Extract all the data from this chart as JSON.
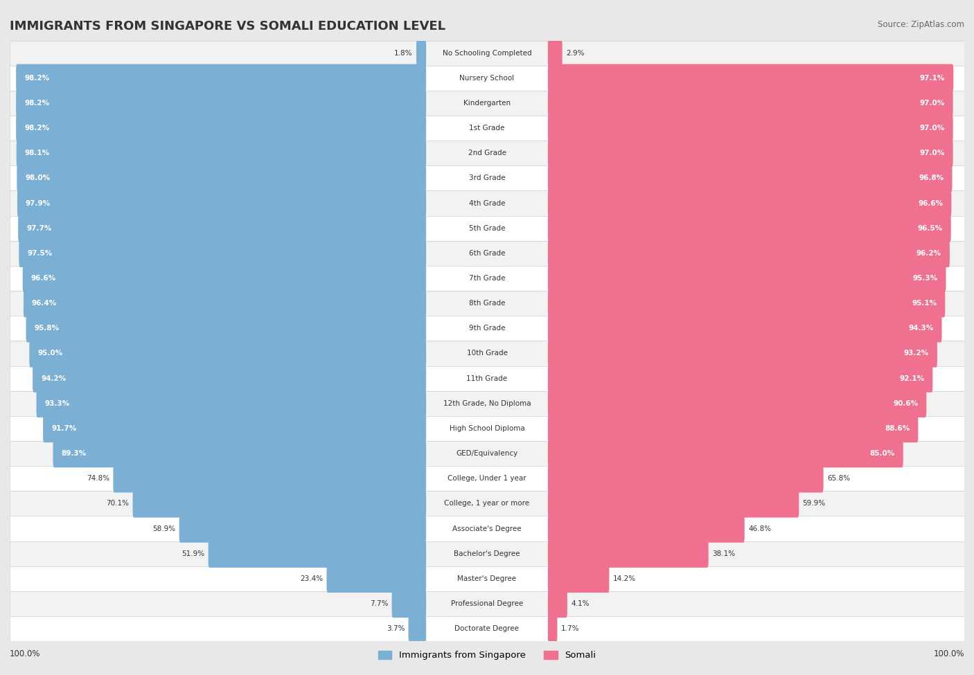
{
  "title": "IMMIGRANTS FROM SINGAPORE VS SOMALI EDUCATION LEVEL",
  "source": "Source: ZipAtlas.com",
  "categories": [
    "No Schooling Completed",
    "Nursery School",
    "Kindergarten",
    "1st Grade",
    "2nd Grade",
    "3rd Grade",
    "4th Grade",
    "5th Grade",
    "6th Grade",
    "7th Grade",
    "8th Grade",
    "9th Grade",
    "10th Grade",
    "11th Grade",
    "12th Grade, No Diploma",
    "High School Diploma",
    "GED/Equivalency",
    "College, Under 1 year",
    "College, 1 year or more",
    "Associate's Degree",
    "Bachelor's Degree",
    "Master's Degree",
    "Professional Degree",
    "Doctorate Degree"
  ],
  "singapore_values": [
    1.8,
    98.2,
    98.2,
    98.2,
    98.1,
    98.0,
    97.9,
    97.7,
    97.5,
    96.6,
    96.4,
    95.8,
    95.0,
    94.2,
    93.3,
    91.7,
    89.3,
    74.8,
    70.1,
    58.9,
    51.9,
    23.4,
    7.7,
    3.7
  ],
  "somali_values": [
    2.9,
    97.1,
    97.0,
    97.0,
    97.0,
    96.8,
    96.6,
    96.5,
    96.2,
    95.3,
    95.1,
    94.3,
    93.2,
    92.1,
    90.6,
    88.6,
    85.0,
    65.8,
    59.9,
    46.8,
    38.1,
    14.2,
    4.1,
    1.7
  ],
  "singapore_color": "#7bafd4",
  "somali_color": "#f07090",
  "background_color": "#e8e8e8",
  "row_bg_colors": [
    "#f2f2f2",
    "#ffffff"
  ],
  "text_dark": "#333333",
  "text_white": "#ffffff",
  "legend_singapore": "Immigrants from Singapore",
  "legend_somali": "Somali",
  "white_text_threshold_sing": 85.0,
  "white_text_threshold_som": 80.0
}
